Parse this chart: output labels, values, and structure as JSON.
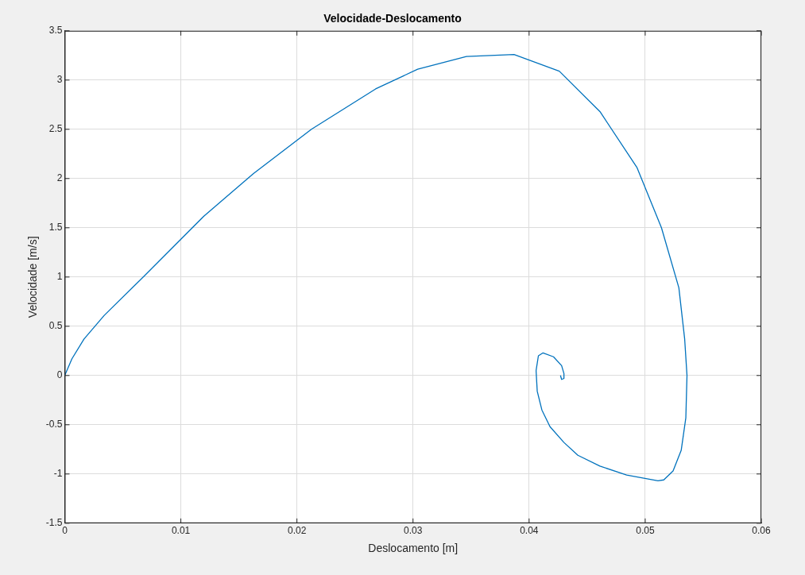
{
  "chart_data": {
    "type": "line",
    "title": "Velocidade-Deslocamento",
    "xlabel": "Deslocamento [m]",
    "ylabel": "Velocidade [m/s]",
    "x": [
      0,
      0.00062,
      0.00166,
      0.0034,
      0.00685,
      0.012,
      0.01626,
      0.02125,
      0.02678,
      0.0304,
      0.0346,
      0.0387,
      0.0426,
      0.0461,
      0.0493,
      0.0514,
      0.0529,
      0.0534,
      0.0536,
      0.0535,
      0.0531,
      0.0524,
      0.0516,
      0.0511,
      0.0484,
      0.0461,
      0.0442,
      0.043,
      0.0418,
      0.0411,
      0.0407,
      0.0406,
      0.0408,
      0.0412,
      0.0421,
      0.0428,
      0.043,
      0.043,
      0.0428,
      0.0427
    ],
    "series": [
      {
        "color": "#0072bd",
        "values": [
          0,
          0.17,
          0.37,
          0.61,
          1.01,
          1.62,
          2.05,
          2.5,
          2.91,
          3.11,
          3.24,
          3.26,
          3.09,
          2.68,
          2.11,
          1.5,
          0.89,
          0.37,
          0,
          -0.43,
          -0.76,
          -0.97,
          -1.06,
          -1.07,
          -1.01,
          -0.92,
          -0.81,
          -0.68,
          -0.52,
          -0.35,
          -0.16,
          0.05,
          0.2,
          0.23,
          0.19,
          0.1,
          0.02,
          -0.03,
          -0.04,
          0
        ]
      }
    ],
    "xlim": [
      0,
      0.06
    ],
    "xticks": [
      0,
      0.01,
      0.02,
      0.03,
      0.04,
      0.05,
      0.06
    ],
    "ylim": [
      -1.5,
      3.5
    ],
    "yticks": [
      -1.5,
      -1,
      -0.5,
      0,
      0.5,
      1,
      1.5,
      2,
      2.5,
      3,
      3.5
    ],
    "grid": true,
    "legend": false,
    "marker": "none",
    "line_style": "solid"
  }
}
